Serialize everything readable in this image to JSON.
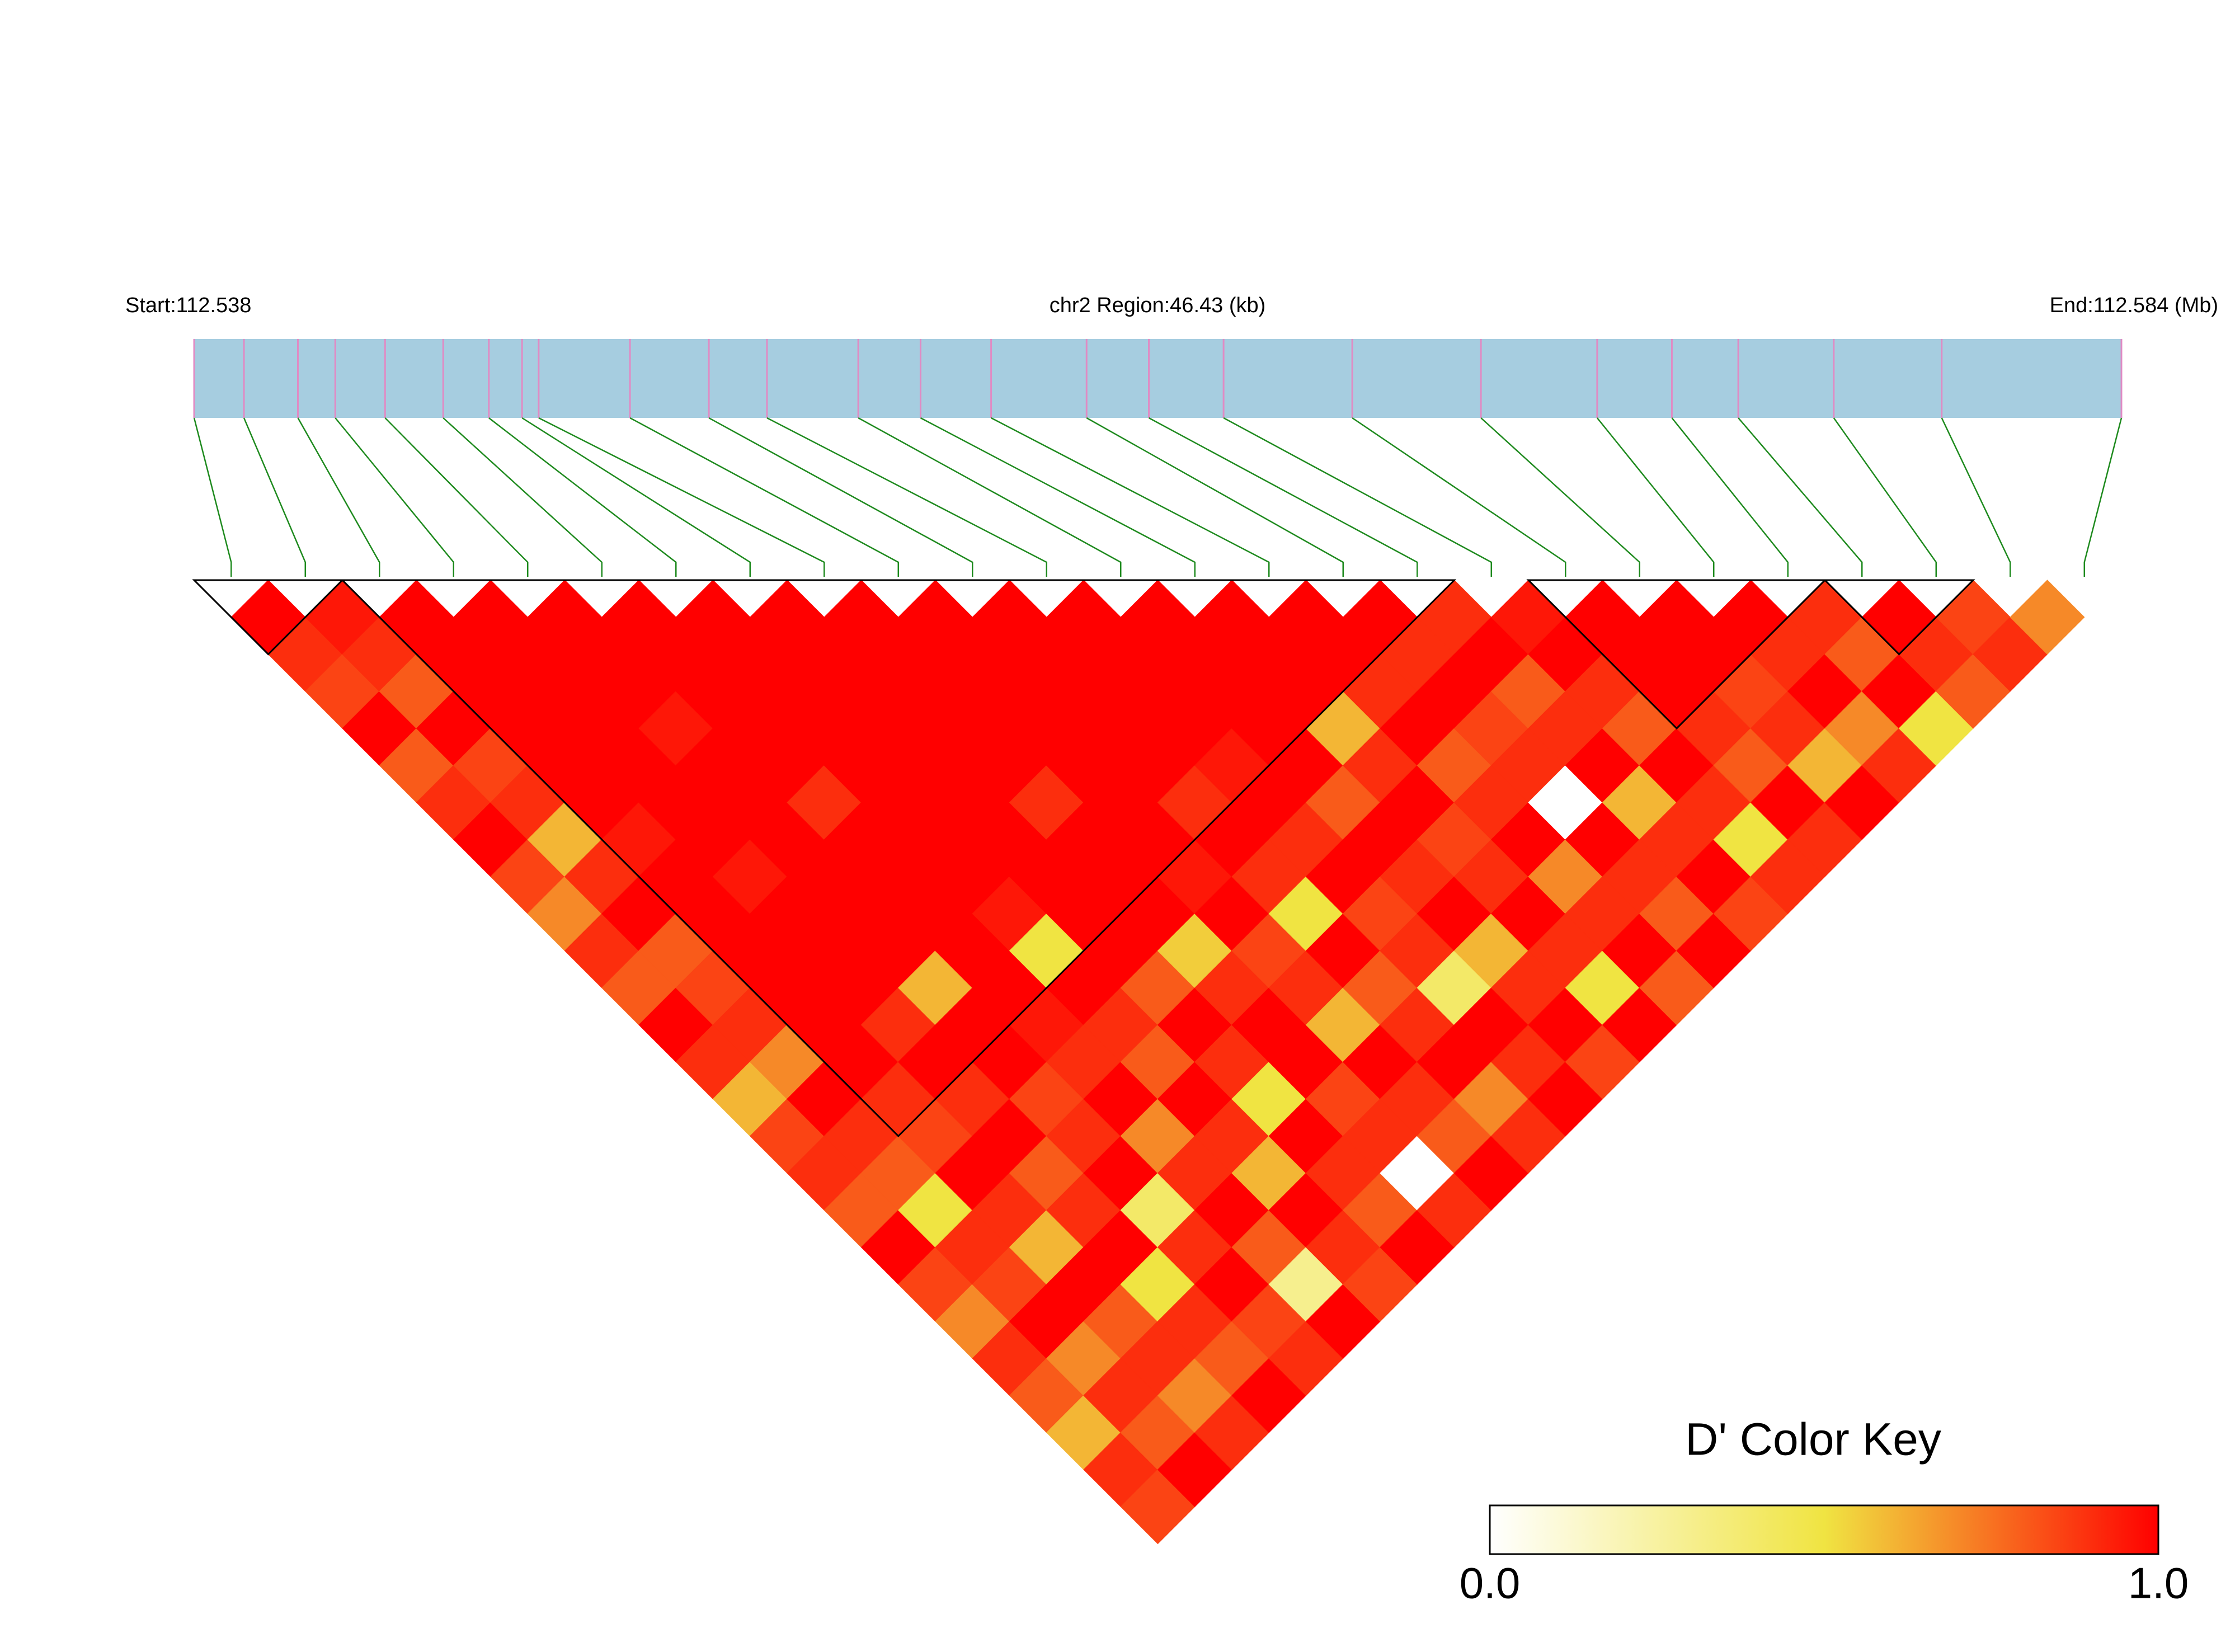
{
  "chart_data": {
    "type": "ld_heatmap",
    "start_label": "Start:112.538",
    "region_label": "chr2 Region:46.43 (kb)",
    "end_label": "End:112.584 (Mb)",
    "region_kb": 46.43,
    "snp_positions": [
      0,
      1.2,
      2.5,
      3.4,
      4.6,
      6.0,
      7.1,
      7.9,
      8.3,
      10.5,
      12.4,
      13.8,
      16.0,
      17.5,
      19.2,
      21.5,
      23.0,
      24.8,
      27.9,
      31.0,
      33.8,
      35.6,
      37.2,
      39.5,
      42.1,
      46.43
    ],
    "track_color": "#a6cde0",
    "snp_line_color": "#e08bc4",
    "connector_color": "#1e8a1e",
    "block_color": "#000000",
    "colors": [
      "#ffffff",
      "#f0e442",
      "#ff0000"
    ],
    "ld_matrix": [
      [
        1,
        0.9,
        0.85,
        1,
        0.8,
        0.9,
        1,
        0.85,
        0.7,
        0.9,
        0.8,
        1,
        0.9,
        0.6,
        0.85,
        0.9,
        0.8,
        1,
        0.85,
        0.7,
        0.9,
        0.8,
        0.6,
        0.9,
        0.85
      ],
      [
        0.95,
        0.9,
        0.8,
        1,
        0.85,
        0.9,
        0.6,
        0.9,
        1,
        0.8,
        0.85,
        0.9,
        0.7,
        1,
        0.9,
        0.8,
        0.5,
        0.9,
        0.85,
        1,
        0.7,
        0.9,
        0.8,
        1
      ],
      [
        1,
        1,
        1,
        1,
        1,
        1,
        0.95,
        1,
        1,
        1,
        1,
        1,
        1,
        0.9,
        0.85,
        1,
        0.9,
        0.6,
        1,
        0.8,
        0.9,
        0.7,
        0.9
      ],
      [
        1,
        1,
        1,
        1,
        1,
        1,
        1,
        0.95,
        1,
        1,
        1,
        0.9,
        1,
        0.9,
        1,
        0.8,
        0.9,
        1,
        0.5,
        0.9,
        0.8,
        1
      ],
      [
        1,
        1,
        1,
        0.95,
        1,
        1,
        1,
        1,
        1,
        1,
        0.6,
        1,
        1,
        0.85,
        0.9,
        1,
        0.4,
        0.9,
        1,
        0.85,
        0.9
      ],
      [
        1,
        1,
        1,
        1,
        1,
        0.9,
        1,
        1,
        1,
        1,
        1,
        0.95,
        0.9,
        1,
        0.7,
        0.9,
        1,
        0.8,
        0.3,
        1
      ],
      [
        1,
        1,
        1,
        1,
        1,
        1,
        1,
        1,
        0.95,
        0.5,
        1,
        0.9,
        0.8,
        1,
        0.9,
        0.6,
        1,
        0.9,
        0.85
      ],
      [
        1,
        1,
        1,
        1,
        1,
        1,
        1,
        1,
        1,
        1,
        0.8,
        1,
        0.9,
        0.5,
        1,
        0.9,
        0.8,
        1
      ],
      [
        1,
        1,
        1,
        1,
        1,
        0.9,
        1,
        1,
        1,
        0.55,
        0.9,
        1,
        1,
        0.85,
        0.9,
        0,
        0.9
      ],
      [
        1,
        1,
        1,
        1,
        1,
        1,
        1,
        0.95,
        1,
        0.85,
        0.9,
        0.6,
        1,
        0.9,
        0.8,
        1
      ],
      [
        1,
        1,
        1,
        1,
        1,
        0.9,
        1,
        0.9,
        0.5,
        1,
        0.8,
        0.9,
        1,
        0.7,
        0.9
      ],
      [
        1,
        1,
        1,
        1,
        0.95,
        1,
        0.9,
        1,
        0.85,
        0.9,
        0.4,
        1,
        0.9,
        1
      ],
      [
        1,
        1,
        1,
        1,
        1,
        0.8,
        1,
        0.9,
        1,
        0.6,
        0.9,
        1,
        0.85
      ],
      [
        1,
        1,
        1,
        0.6,
        0.9,
        1,
        0.85,
        0.9,
        1,
        0.9,
        0.5,
        1
      ],
      [
        1,
        1,
        0.9,
        1,
        0.8,
        0.9,
        1,
        0.7,
        0.9,
        1,
        0.8
      ],
      [
        1,
        0.9,
        1,
        0.85,
        0.9,
        0,
        1,
        0.9,
        0.8,
        1
      ],
      [
        0.9,
        1,
        0.8,
        0.9,
        1,
        0.6,
        0.9,
        1,
        0.85
      ],
      [
        0.95,
        1,
        0.9,
        0.8,
        1,
        0.9,
        0.5,
        0.9
      ],
      [
        1,
        1,
        1,
        0.9,
        0.8,
        1,
        0.9
      ],
      [
        1,
        1,
        0.85,
        0.9,
        0.6,
        1
      ],
      [
        1,
        0.9,
        1,
        0.7,
        0.9
      ],
      [
        0.9,
        0.8,
        1,
        0.5
      ],
      [
        1,
        0.9,
        0.8
      ],
      [
        0.85,
        0.9
      ],
      [
        0.7
      ]
    ],
    "blocks": [
      [
        0,
        1
      ],
      [
        2,
        16
      ],
      [
        18,
        21
      ],
      [
        22,
        23
      ]
    ],
    "color_key": {
      "title": "D' Color Key",
      "ticks": [
        {
          "value": 0,
          "label": "0.0"
        },
        {
          "value": 1,
          "label": "1.0"
        }
      ]
    }
  }
}
